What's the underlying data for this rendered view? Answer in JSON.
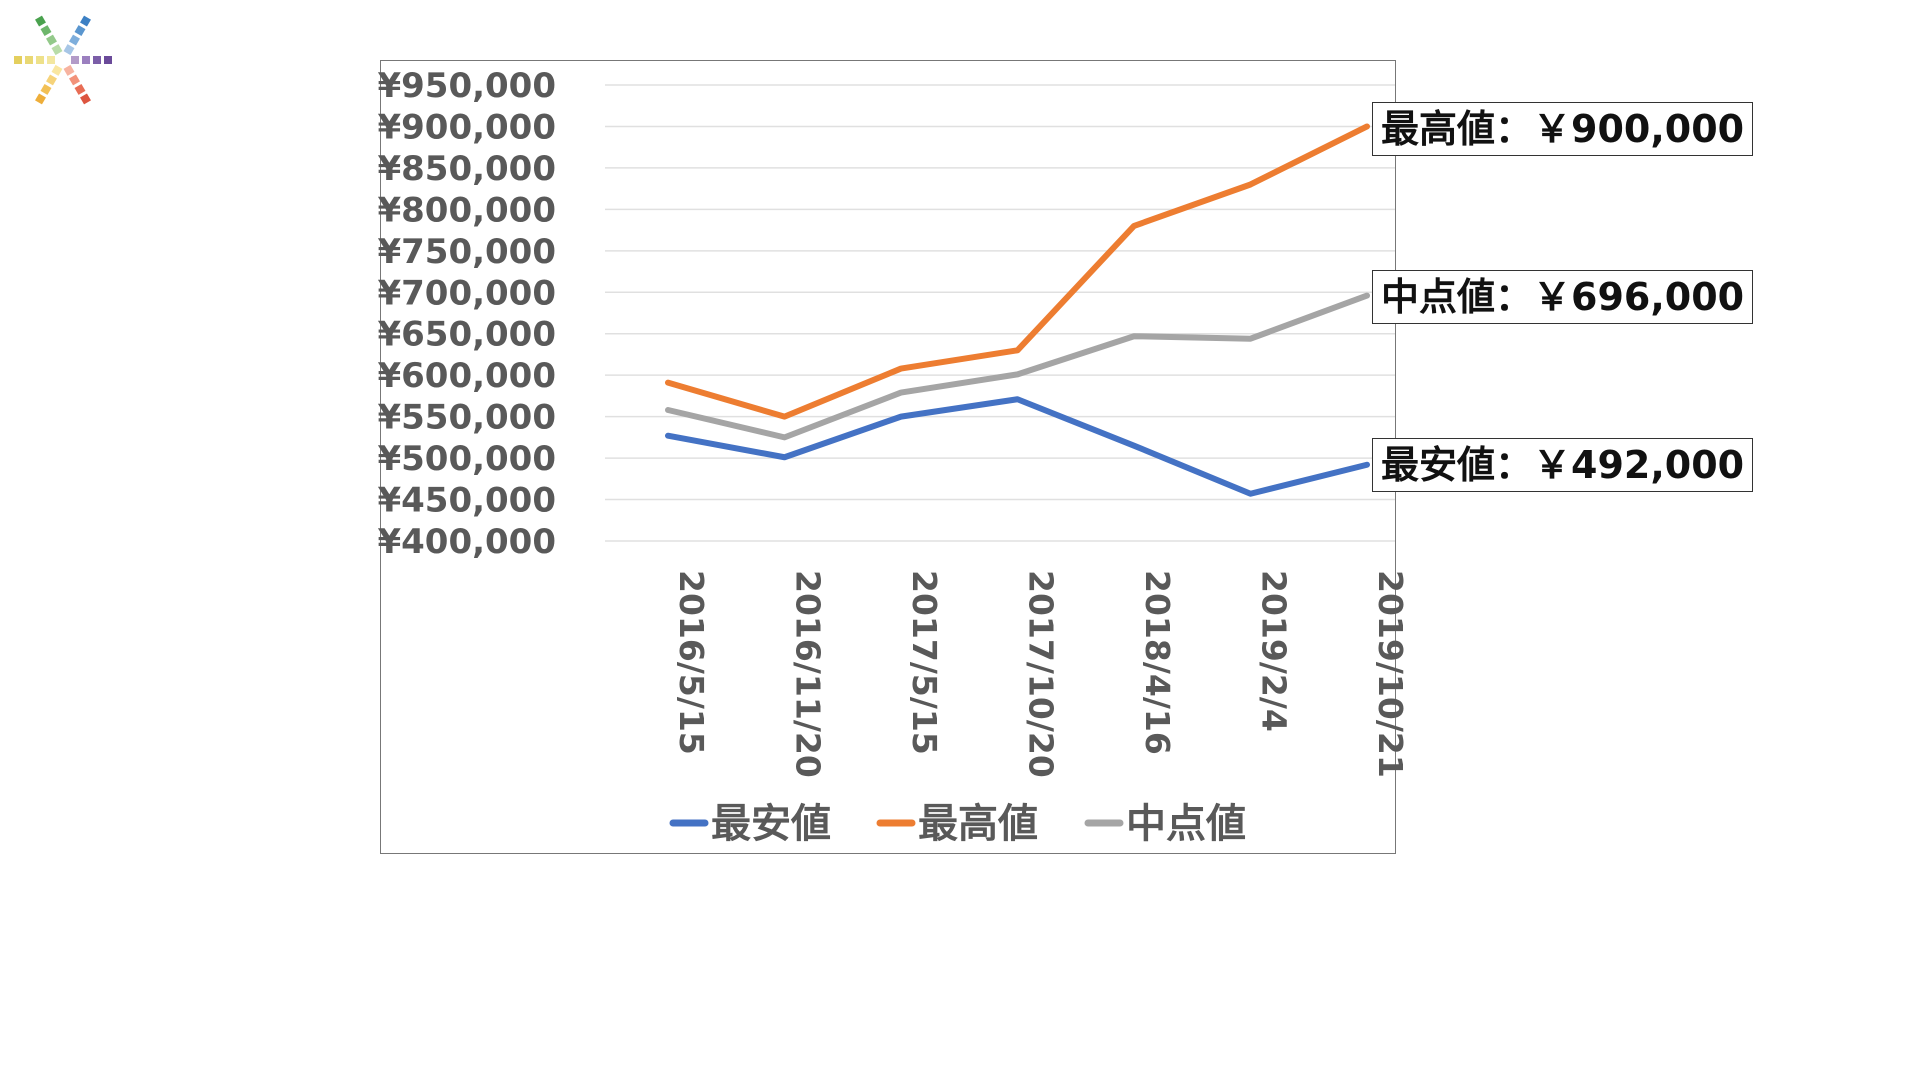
{
  "chart_data": {
    "type": "line",
    "categories": [
      "2016/5/15",
      "2016/11/20",
      "2017/5/15",
      "2017/10/20",
      "2018/4/16",
      "2019/2/4",
      "2019/10/21"
    ],
    "series": [
      {
        "name": "最安値",
        "color": "#4472C4",
        "values": [
          527000,
          501000,
          550000,
          571000,
          515000,
          457000,
          492000
        ]
      },
      {
        "name": "最高値",
        "color": "#ED7D31",
        "values": [
          591000,
          550000,
          608000,
          630000,
          780000,
          830000,
          900000
        ]
      },
      {
        "name": "中点値",
        "color": "#A5A5A5",
        "values": [
          558000,
          525000,
          579000,
          601000,
          647000,
          644000,
          696000
        ]
      }
    ],
    "ylim": [
      400000,
      950000
    ],
    "y_step": 50000,
    "y_tick_labels": [
      "¥400,000",
      "¥450,000",
      "¥500,000",
      "¥550,000",
      "¥600,000",
      "¥650,000",
      "¥700,000",
      "¥750,000",
      "¥800,000",
      "¥850,000",
      "¥900,000",
      "¥950,000"
    ],
    "grid": true,
    "legend_position": "bottom",
    "title": "",
    "xlabel": "",
    "ylabel": ""
  },
  "callouts": {
    "max": "最高値：￥900,000",
    "mid": "中点値：￥696,000",
    "min": "最安値：￥492,000"
  },
  "logo": {
    "icon": "color-swatch-star-logo"
  }
}
